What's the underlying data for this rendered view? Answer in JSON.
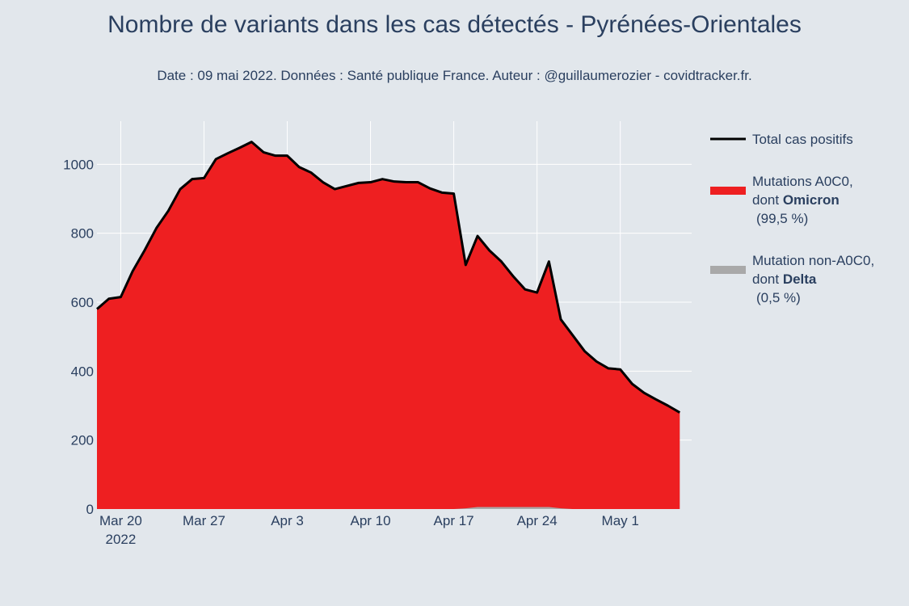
{
  "title": "Nombre de variants dans les cas détectés - Pyrénées-Orientales",
  "subtitle": "Date : 09 mai 2022. Données : Santé publique France. Auteur : @guillaumerozier - covidtracker.fr.",
  "chart_data": {
    "type": "area",
    "x_start": "2022-03-18",
    "x_ticks": [
      {
        "date": "2022-03-20",
        "label": "Mar 20",
        "sublabel": "2022"
      },
      {
        "date": "2022-03-27",
        "label": "Mar 27",
        "sublabel": ""
      },
      {
        "date": "2022-04-03",
        "label": "Apr 3",
        "sublabel": ""
      },
      {
        "date": "2022-04-10",
        "label": "Apr 10",
        "sublabel": ""
      },
      {
        "date": "2022-04-17",
        "label": "Apr 17",
        "sublabel": ""
      },
      {
        "date": "2022-04-24",
        "label": "Apr 24",
        "sublabel": ""
      },
      {
        "date": "2022-05-01",
        "label": "May 1",
        "sublabel": ""
      }
    ],
    "y_ticks": [
      0,
      200,
      400,
      600,
      800,
      1000
    ],
    "xlim": [
      "2022-03-18",
      "2022-05-07"
    ],
    "ylim": [
      0,
      1125
    ],
    "grid": true,
    "legend_position": "right",
    "series": [
      {
        "name": "Total cas positifs",
        "kind": "line",
        "color": "#000000",
        "values": [
          580,
          610,
          615,
          690,
          750,
          815,
          865,
          928,
          957,
          960,
          1015,
          1032,
          1048,
          1065,
          1035,
          1025,
          1025,
          992,
          976,
          948,
          928,
          937,
          946,
          948,
          957,
          950,
          948,
          948,
          930,
          918,
          915,
          708,
          792,
          750,
          718,
          675,
          637,
          628,
          718,
          550,
          504,
          458,
          428,
          408,
          405,
          363,
          337,
          318,
          300,
          280
        ]
      },
      {
        "name_parts": [
          "Mutations A0C0,",
          "dont ",
          "Omicron",
          "(99,5 %)"
        ],
        "kind": "area",
        "color": "#ee1f21",
        "values": [
          580,
          610,
          615,
          690,
          750,
          815,
          865,
          928,
          957,
          960,
          1015,
          1032,
          1048,
          1065,
          1035,
          1025,
          1025,
          992,
          976,
          948,
          928,
          937,
          946,
          948,
          957,
          950,
          948,
          948,
          930,
          918,
          915,
          708,
          792,
          750,
          718,
          675,
          637,
          628,
          718,
          550,
          504,
          458,
          428,
          408,
          405,
          363,
          337,
          318,
          300,
          280
        ]
      },
      {
        "name_parts": [
          "Mutation non-A0C0,",
          "dont ",
          "Delta",
          "(0,5 %)"
        ],
        "kind": "area",
        "color": "#a9a9a9",
        "values": [
          0,
          0,
          0,
          0,
          0,
          0,
          0,
          0,
          0,
          0,
          0,
          0,
          0,
          0,
          0,
          0,
          0,
          0,
          0,
          0,
          0,
          0,
          0,
          0,
          0,
          0,
          0,
          0,
          0,
          0,
          0,
          2,
          6,
          6,
          6,
          6,
          6,
          6,
          6,
          2,
          0,
          0,
          0,
          0,
          0,
          0,
          0,
          0,
          0,
          0
        ]
      }
    ]
  }
}
